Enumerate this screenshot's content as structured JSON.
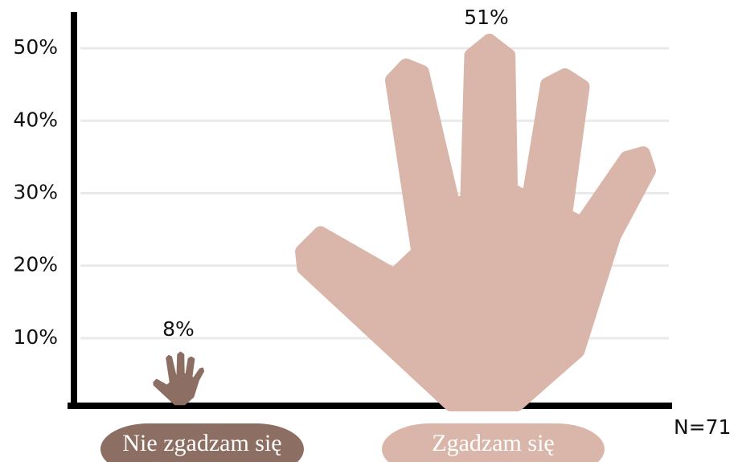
{
  "chart_data": {
    "type": "pictograph",
    "categories": [
      "Nie zgadzam się",
      "Zgadzam się"
    ],
    "values": [
      8,
      51
    ],
    "value_labels": [
      "8%",
      "51%"
    ],
    "colors": [
      "#8c6e62",
      "#d9b6a9"
    ],
    "ylim": [
      0,
      55
    ],
    "yticks": [
      {
        "value": 10,
        "label": "10%"
      },
      {
        "value": 20,
        "label": "20%"
      },
      {
        "value": 30,
        "label": "30%"
      },
      {
        "value": 40,
        "label": "40%"
      },
      {
        "value": 50,
        "label": "50%"
      }
    ],
    "grid": true,
    "annotation": "N=71"
  }
}
